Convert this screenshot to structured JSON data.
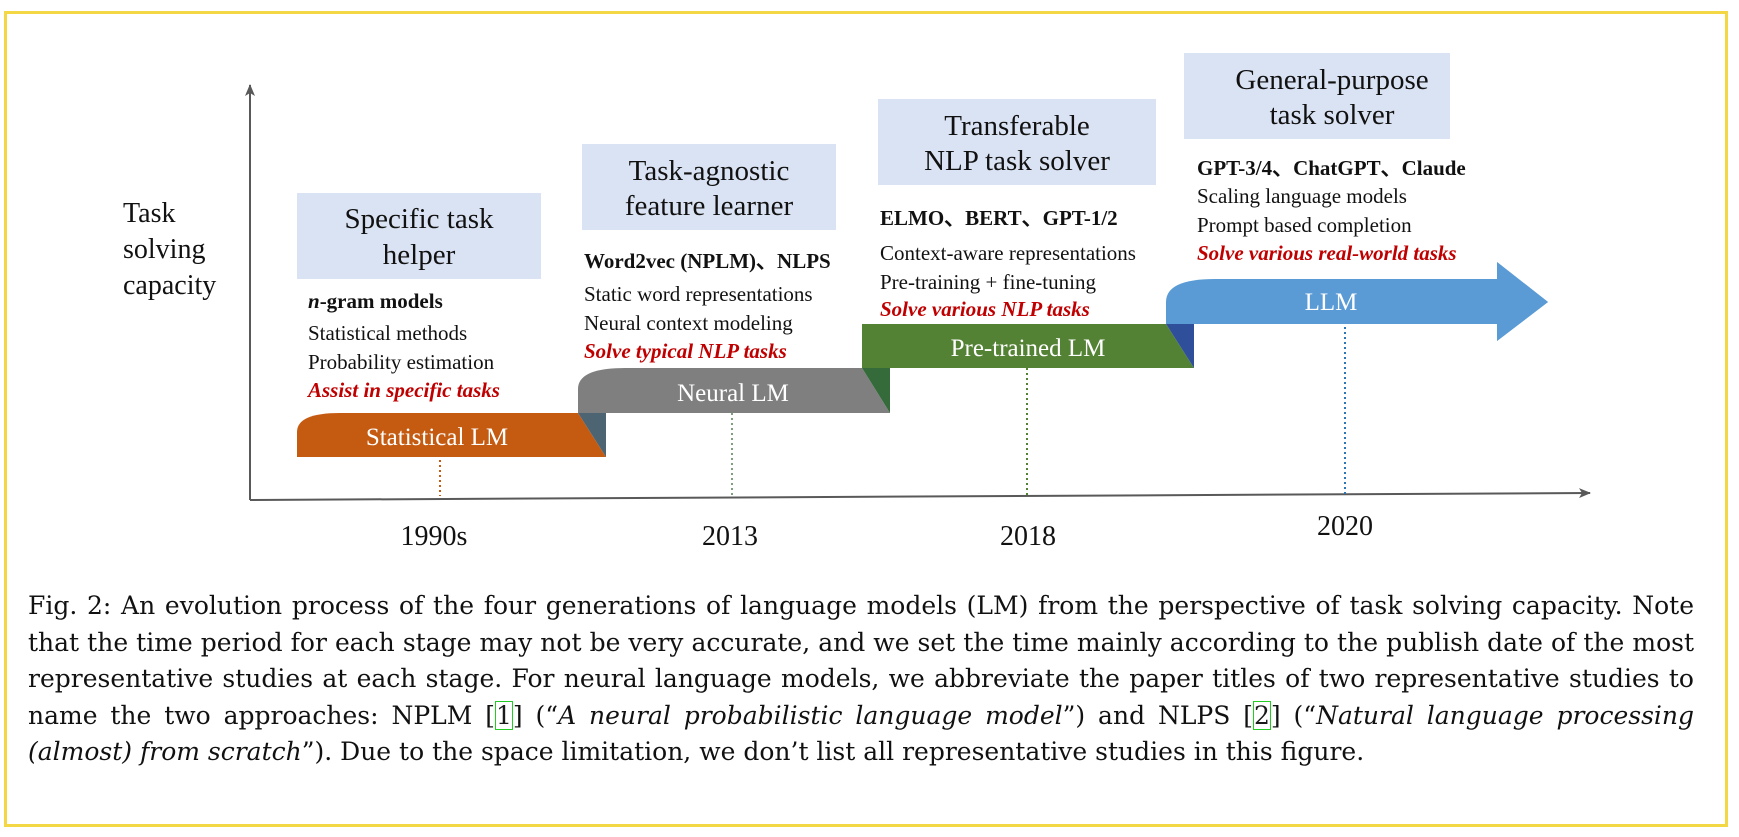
{
  "axis": {
    "y_label": [
      "Task",
      "solving",
      "capacity"
    ],
    "years": [
      "1990s",
      "2013",
      "2018",
      "2020"
    ]
  },
  "stages": [
    {
      "bar_label": "Statistical LM",
      "bar_color": "#c55a11",
      "role_title": [
        "Specific task",
        "helper"
      ],
      "models": "n-gram models",
      "models_italic_prefix": "n",
      "models_suffix": "-gram models",
      "features": [
        "Statistical methods",
        "Probability estimation"
      ],
      "goal": "Assist in specific tasks"
    },
    {
      "bar_label": "Neural LM",
      "bar_color": "#7f7f7f",
      "role_title": [
        "Task-agnostic",
        "feature learner"
      ],
      "models": "Word2vec (NPLM)、NLPS",
      "features": [
        "Static word representations",
        "Neural context modeling"
      ],
      "goal": "Solve typical NLP tasks"
    },
    {
      "bar_label": "Pre-trained LM",
      "bar_color": "#548235",
      "role_title": [
        "Transferable",
        "NLP task solver"
      ],
      "models": "ELMO、BERT、GPT-1/2",
      "features": [
        "Context-aware representations",
        "Pre-training + fine-tuning"
      ],
      "goal": "Solve various NLP tasks"
    },
    {
      "bar_label": "LLM",
      "bar_color": "#5b9bd5",
      "role_title": [
        "General-purpose",
        "task solver"
      ],
      "models": "GPT-3/4、ChatGPT、Claude",
      "features": [
        "Scaling language models",
        "Prompt based completion"
      ],
      "goal": "Solve various real-world tasks"
    }
  ],
  "colors": {
    "frame": "#f4d745",
    "title_box": "#dae3f3",
    "goal_text": "#c00000",
    "axis": "#595959"
  },
  "caption": {
    "p1": "Fig. 2: An evolution process of the four generations of language models (LM) from the perspective of task solving capacity. Note that the time period for each stage may not be very accurate, and we set the time mainly according to the publish date of the most representative studies at each stage. For neural language models, we abbreviate the paper titles of two representative studies to name the two approaches: NPLM [",
    "ref1": "1",
    "p2": "] (“",
    "title1": "A neural probabilistic language model",
    "p3": "”) and NLPS [",
    "ref2": "2",
    "p4": "] (“",
    "title2": "Natural language processing (almost) from scratch",
    "p5": "”). Due to the space limitation, we don’t list all representative studies in this figure."
  }
}
